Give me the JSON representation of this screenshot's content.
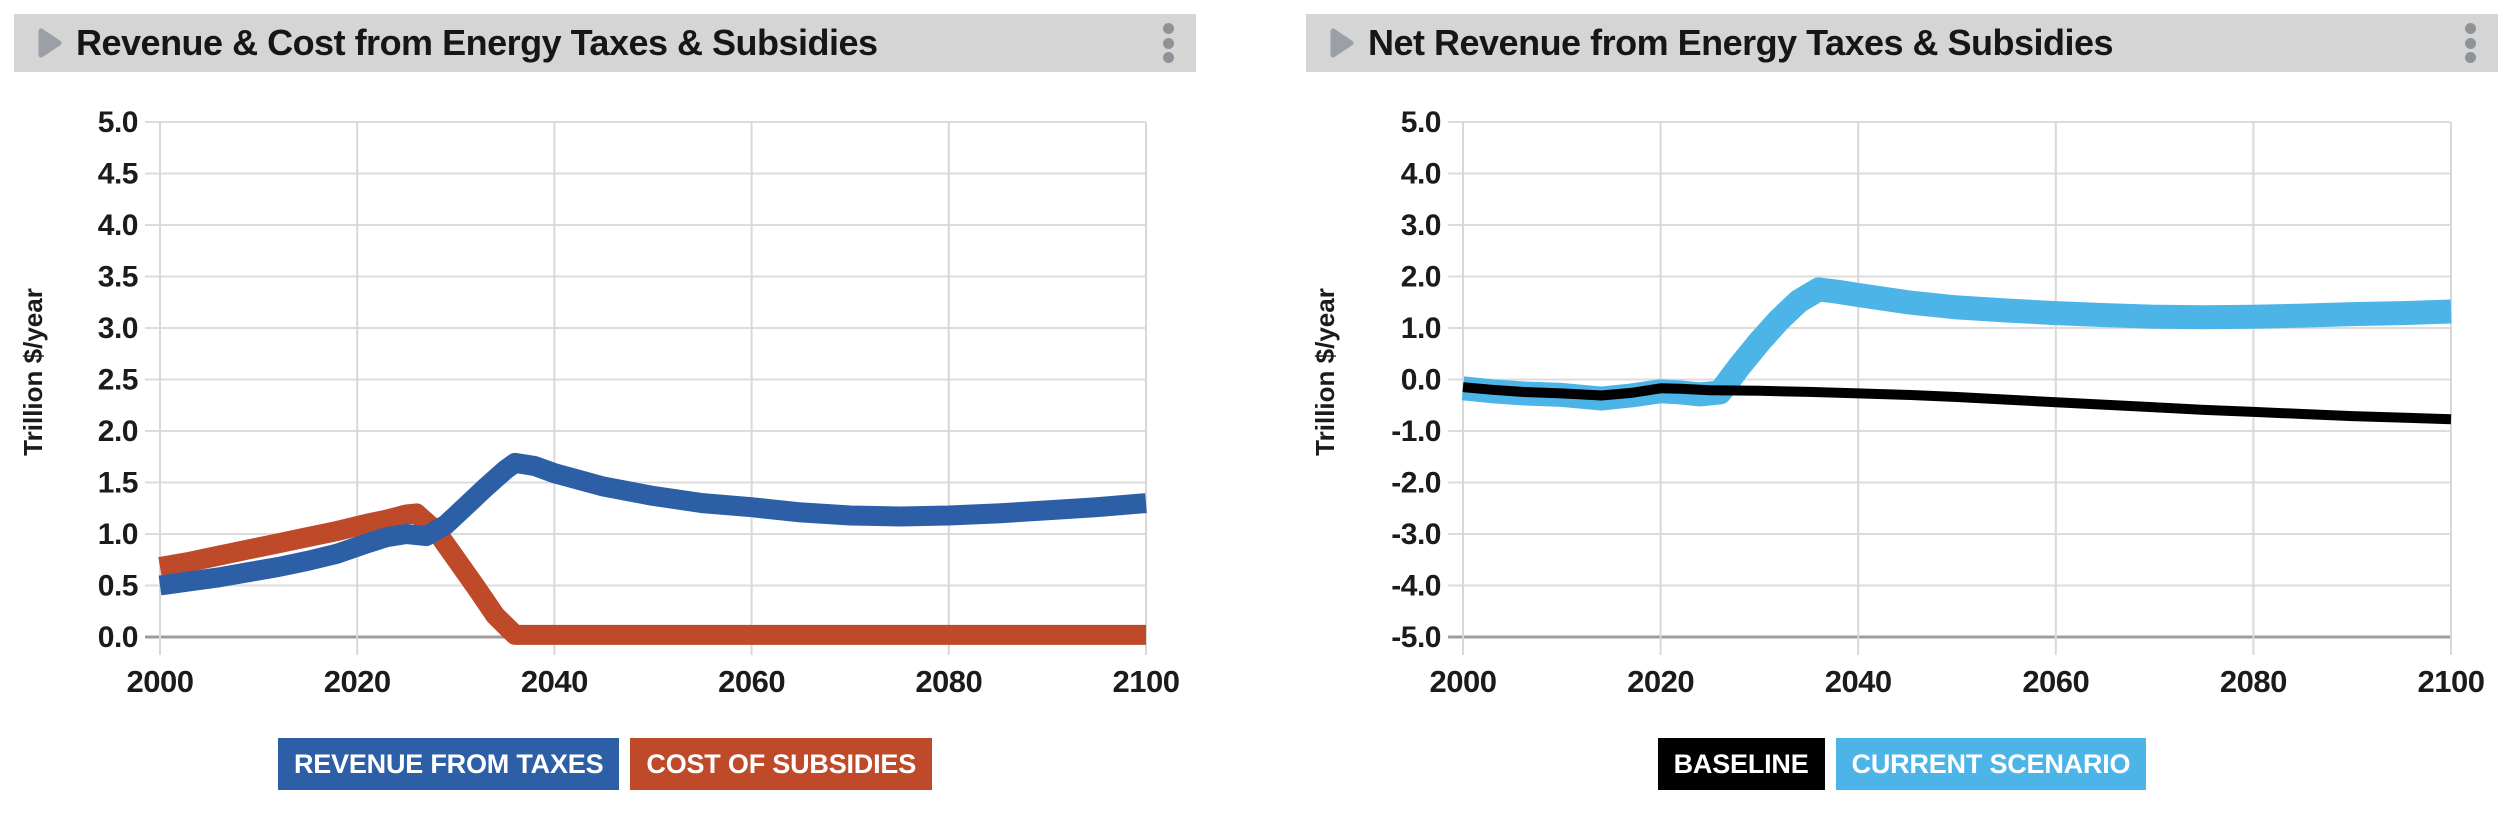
{
  "ui": {
    "collapse_icon": "triangle-right-icon",
    "menu_icon": "kebab-menu-icon",
    "header_background": "#d5d5d5"
  },
  "chart_data": [
    {
      "type": "line",
      "title": "Revenue & Cost from Energy Taxes & Subsidies",
      "xlabel": "",
      "ylabel": "Trillion $/year",
      "xlim": [
        2000,
        2100
      ],
      "ylim": [
        0.0,
        5.0
      ],
      "ytick_step": 0.5,
      "xticks": [
        2000,
        2020,
        2040,
        2060,
        2080,
        2100
      ],
      "grid": true,
      "legend_position": "bottom",
      "series": [
        {
          "name": "REVENUE FROM TAXES",
          "color": "#2d5fa6",
          "line_width": 20,
          "points": [
            [
              2000,
              0.5
            ],
            [
              2003,
              0.54
            ],
            [
              2006,
              0.58
            ],
            [
              2009,
              0.63
            ],
            [
              2012,
              0.68
            ],
            [
              2015,
              0.74
            ],
            [
              2018,
              0.81
            ],
            [
              2021,
              0.91
            ],
            [
              2023,
              0.97
            ],
            [
              2025,
              1.0
            ],
            [
              2027,
              0.98
            ],
            [
              2029,
              1.09
            ],
            [
              2031,
              1.27
            ],
            [
              2033,
              1.45
            ],
            [
              2035,
              1.62
            ],
            [
              2036,
              1.69
            ],
            [
              2038,
              1.66
            ],
            [
              2040,
              1.59
            ],
            [
              2045,
              1.46
            ],
            [
              2050,
              1.37
            ],
            [
              2055,
              1.3
            ],
            [
              2060,
              1.26
            ],
            [
              2065,
              1.21
            ],
            [
              2070,
              1.18
            ],
            [
              2075,
              1.17
            ],
            [
              2080,
              1.18
            ],
            [
              2085,
              1.2
            ],
            [
              2090,
              1.23
            ],
            [
              2095,
              1.26
            ],
            [
              2100,
              1.3
            ]
          ]
        },
        {
          "name": "COST OF SUBSIDIES",
          "color": "#bf4a2a",
          "line_width": 20,
          "points": [
            [
              2000,
              0.68
            ],
            [
              2003,
              0.73
            ],
            [
              2006,
              0.79
            ],
            [
              2009,
              0.85
            ],
            [
              2012,
              0.91
            ],
            [
              2015,
              0.97
            ],
            [
              2018,
              1.03
            ],
            [
              2021,
              1.1
            ],
            [
              2023,
              1.14
            ],
            [
              2025,
              1.19
            ],
            [
              2026,
              1.2
            ],
            [
              2028,
              1.03
            ],
            [
              2030,
              0.76
            ],
            [
              2032,
              0.49
            ],
            [
              2034,
              0.21
            ],
            [
              2036,
              0.02
            ],
            [
              2040,
              0.02
            ],
            [
              2050,
              0.02
            ],
            [
              2060,
              0.02
            ],
            [
              2070,
              0.02
            ],
            [
              2080,
              0.02
            ],
            [
              2090,
              0.02
            ],
            [
              2100,
              0.02
            ]
          ]
        }
      ]
    },
    {
      "type": "line",
      "title": "Net Revenue from Energy Taxes & Subsidies",
      "xlabel": "",
      "ylabel": "Trillion $/year",
      "xlim": [
        2000,
        2100
      ],
      "ylim": [
        -5.0,
        5.0
      ],
      "ytick_step": 1.0,
      "xticks": [
        2000,
        2020,
        2040,
        2060,
        2080,
        2100
      ],
      "grid": true,
      "legend_position": "bottom",
      "series": [
        {
          "name": "BASELINE",
          "color": "#000000",
          "line_width": 10,
          "points": [
            [
              2000,
              -0.15
            ],
            [
              2003,
              -0.2
            ],
            [
              2006,
              -0.24
            ],
            [
              2010,
              -0.27
            ],
            [
              2014,
              -0.31
            ],
            [
              2017,
              -0.26
            ],
            [
              2020,
              -0.17
            ],
            [
              2022,
              -0.18
            ],
            [
              2025,
              -0.21
            ],
            [
              2030,
              -0.22
            ],
            [
              2035,
              -0.24
            ],
            [
              2040,
              -0.27
            ],
            [
              2045,
              -0.3
            ],
            [
              2050,
              -0.34
            ],
            [
              2055,
              -0.39
            ],
            [
              2060,
              -0.44
            ],
            [
              2065,
              -0.49
            ],
            [
              2070,
              -0.54
            ],
            [
              2075,
              -0.59
            ],
            [
              2080,
              -0.63
            ],
            [
              2085,
              -0.67
            ],
            [
              2090,
              -0.71
            ],
            [
              2095,
              -0.74
            ],
            [
              2100,
              -0.77
            ]
          ]
        },
        {
          "name": "CURRENT SCENARIO",
          "color": "#4db4e8",
          "line_width": 24,
          "points": [
            [
              2000,
              -0.17
            ],
            [
              2003,
              -0.23
            ],
            [
              2006,
              -0.27
            ],
            [
              2010,
              -0.3
            ],
            [
              2014,
              -0.37
            ],
            [
              2017,
              -0.31
            ],
            [
              2020,
              -0.23
            ],
            [
              2022,
              -0.25
            ],
            [
              2024,
              -0.29
            ],
            [
              2026,
              -0.25
            ],
            [
              2028,
              0.26
            ],
            [
              2030,
              0.73
            ],
            [
              2032,
              1.16
            ],
            [
              2034,
              1.52
            ],
            [
              2036,
              1.75
            ],
            [
              2038,
              1.7
            ],
            [
              2040,
              1.64
            ],
            [
              2045,
              1.5
            ],
            [
              2050,
              1.4
            ],
            [
              2055,
              1.34
            ],
            [
              2060,
              1.29
            ],
            [
              2065,
              1.25
            ],
            [
              2070,
              1.22
            ],
            [
              2075,
              1.21
            ],
            [
              2080,
              1.22
            ],
            [
              2085,
              1.24
            ],
            [
              2090,
              1.27
            ],
            [
              2095,
              1.29
            ],
            [
              2100,
              1.32
            ]
          ]
        }
      ]
    }
  ]
}
